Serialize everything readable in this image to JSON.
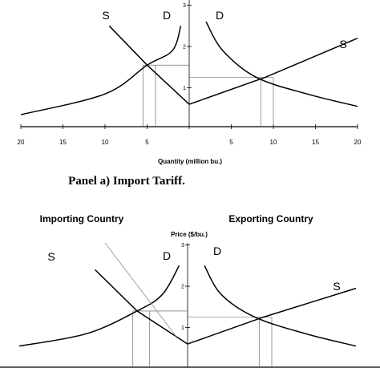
{
  "chart_data": [
    {
      "type": "line",
      "title": "",
      "xlabel": "Quantity (million bu.)",
      "ylabel": "",
      "x_tick_labels": [
        "20",
        "15",
        "10",
        "5",
        "",
        "5",
        "10",
        "15",
        "20"
      ],
      "y_tick_labels": [
        "3",
        "2",
        "1"
      ],
      "curve_labels": {
        "importer_supply": "S",
        "importer_demand": "D",
        "exporter_demand": "D",
        "exporter_supply": "S"
      },
      "grid": false,
      "legend": "none",
      "series": [
        {
          "side": "importing",
          "kind": "supply",
          "points": [
            [
              0,
              0.6
            ],
            [
              5,
              1.55
            ],
            [
              9.5,
              2.5
            ]
          ]
        },
        {
          "side": "importing",
          "kind": "demand",
          "points": [
            [
              1,
              2.5
            ],
            [
              2,
              1.9
            ],
            [
              5,
              1.55
            ],
            [
              10,
              0.85
            ],
            [
              20,
              0.35
            ]
          ]
        },
        {
          "side": "exporting",
          "kind": "demand",
          "points": [
            [
              2,
              2.6
            ],
            [
              4,
              1.9
            ],
            [
              8,
              1.25
            ],
            [
              14,
              0.85
            ],
            [
              20,
              0.55
            ]
          ]
        },
        {
          "side": "exporting",
          "kind": "supply",
          "points": [
            [
              0,
              0.6
            ],
            [
              9,
              1.25
            ],
            [
              20,
              2.2
            ]
          ]
        }
      ],
      "price_levels": [
        1.55,
        1.25
      ],
      "quantity_markers": {
        "importing": [
          5.5,
          4
        ],
        "exporting": [
          8.5,
          10
        ]
      },
      "caption": "Panel a)  Import Tariff."
    },
    {
      "type": "line",
      "title": "",
      "ylabel": "Price ($/bu.)",
      "y_tick_labels": [
        "3",
        "2",
        "1"
      ],
      "headers": {
        "left": "Importing Country",
        "right": "Exporting Country"
      },
      "curve_labels": {
        "importer_supply": "S",
        "importer_demand": "D",
        "exporter_demand": "D",
        "exporter_supply": "S"
      },
      "grid": false,
      "legend": "none",
      "series": [
        {
          "side": "importing",
          "kind": "supply",
          "points": [
            [
              0,
              0.6
            ],
            [
              6,
              1.4
            ],
            [
              11,
              2.4
            ]
          ]
        },
        {
          "side": "importing",
          "kind": "demand",
          "points": [
            [
              1,
              2.5
            ],
            [
              3,
              1.8
            ],
            [
              6,
              1.4
            ],
            [
              12,
              0.85
            ],
            [
              20,
              0.55
            ]
          ]
        },
        {
          "side": "exporting",
          "kind": "demand",
          "points": [
            [
              2,
              2.5
            ],
            [
              4,
              1.8
            ],
            [
              8,
              1.25
            ],
            [
              14,
              0.85
            ],
            [
              20,
              0.55
            ]
          ]
        },
        {
          "side": "exporting",
          "kind": "supply",
          "points": [
            [
              0,
              0.6
            ],
            [
              9,
              1.25
            ],
            [
              20,
              1.95
            ]
          ]
        }
      ],
      "price_levels": [
        1.4,
        1.25
      ],
      "quantity_markers": {
        "importing": [
          6.5,
          4.5
        ],
        "exporting": [
          8.5,
          10
        ]
      }
    }
  ]
}
